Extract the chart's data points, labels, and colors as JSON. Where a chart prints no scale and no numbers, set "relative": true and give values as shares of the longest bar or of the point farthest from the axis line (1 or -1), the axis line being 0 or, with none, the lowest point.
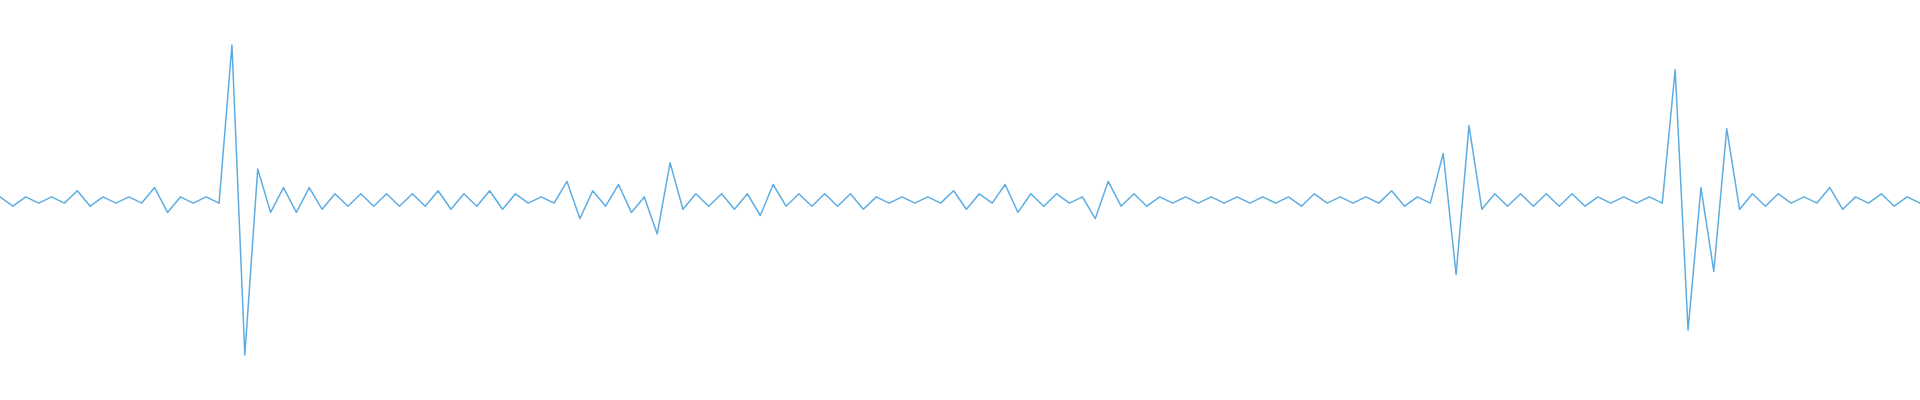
{
  "chart_data": {
    "type": "line",
    "relative": true,
    "categories": [
      null,
      null,
      null,
      null,
      null,
      null,
      null,
      null,
      null,
      null,
      null,
      null,
      null,
      null,
      null,
      null,
      null,
      null,
      null,
      null,
      null,
      null,
      null,
      null,
      null,
      null,
      null,
      null,
      null,
      null,
      null,
      null,
      null,
      null,
      null,
      null,
      null,
      null,
      null,
      null,
      null,
      null,
      null,
      null,
      null,
      null,
      null,
      null,
      null,
      null,
      null,
      null,
      null,
      null,
      null,
      null,
      null,
      null,
      null,
      null,
      null,
      null,
      null,
      null,
      null,
      null,
      null,
      null,
      null,
      null,
      null,
      null,
      null,
      null,
      null,
      null,
      null,
      null,
      null,
      null,
      null,
      null,
      null,
      null,
      null,
      null,
      null,
      null,
      null,
      null,
      null,
      null,
      null,
      null,
      null,
      null,
      null,
      null,
      null,
      null,
      null,
      null,
      null,
      null,
      null,
      null,
      null,
      null,
      null,
      null,
      null,
      null,
      null,
      null,
      null,
      null,
      null,
      null,
      null,
      null,
      null,
      null,
      null,
      null,
      null,
      null,
      null,
      null,
      null,
      null,
      null,
      null,
      null,
      null,
      null,
      null,
      null,
      null,
      null,
      null,
      null,
      null,
      null,
      null,
      null,
      null,
      null,
      null,
      null,
      null
    ],
    "series": [
      {
        "color": "#5dade2",
        "values": [
          0.51,
          0.48,
          0.51,
          0.49,
          0.51,
          0.49,
          0.53,
          0.48,
          0.51,
          0.49,
          0.51,
          0.49,
          0.54,
          0.46,
          0.51,
          0.49,
          0.51,
          0.49,
          1.0,
          0.0,
          0.6,
          0.46,
          0.54,
          0.46,
          0.54,
          0.47,
          0.52,
          0.48,
          0.52,
          0.48,
          0.52,
          0.48,
          0.52,
          0.48,
          0.53,
          0.47,
          0.52,
          0.48,
          0.53,
          0.47,
          0.52,
          0.49,
          0.51,
          0.49,
          0.56,
          0.44,
          0.53,
          0.48,
          0.55,
          0.46,
          0.51,
          0.39,
          0.62,
          0.47,
          0.52,
          0.48,
          0.52,
          0.47,
          0.52,
          0.45,
          0.55,
          0.48,
          0.52,
          0.48,
          0.52,
          0.48,
          0.52,
          0.47,
          0.51,
          0.49,
          0.51,
          0.49,
          0.51,
          0.49,
          0.53,
          0.47,
          0.52,
          0.49,
          0.55,
          0.46,
          0.52,
          0.48,
          0.52,
          0.49,
          0.51,
          0.44,
          0.56,
          0.48,
          0.52,
          0.48,
          0.51,
          0.49,
          0.51,
          0.49,
          0.51,
          0.49,
          0.51,
          0.49,
          0.51,
          0.49,
          0.51,
          0.48,
          0.52,
          0.49,
          0.51,
          0.49,
          0.51,
          0.49,
          0.53,
          0.48,
          0.51,
          0.49,
          0.65,
          0.26,
          0.74,
          0.47,
          0.52,
          0.48,
          0.52,
          0.48,
          0.52,
          0.48,
          0.52,
          0.48,
          0.51,
          0.49,
          0.51,
          0.49,
          0.51,
          0.49,
          0.92,
          0.08,
          0.54,
          0.27,
          0.73,
          0.47,
          0.52,
          0.48,
          0.52,
          0.49,
          0.51,
          0.49,
          0.54,
          0.47,
          0.51,
          0.49,
          0.52,
          0.48,
          0.51,
          0.49
        ]
      }
    ]
  }
}
